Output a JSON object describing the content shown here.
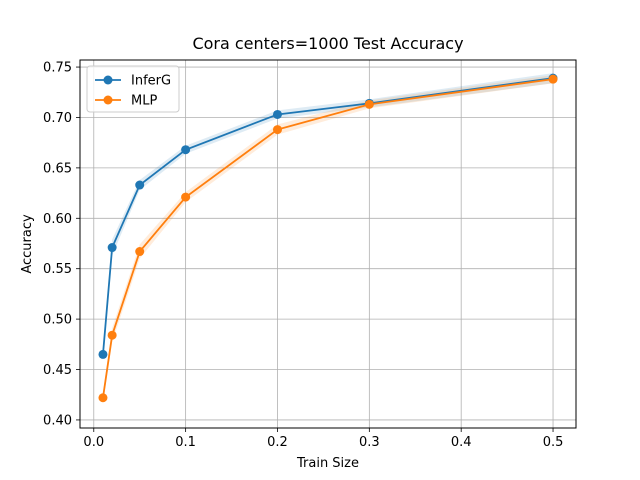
{
  "chart_data": {
    "type": "line",
    "title": "Cora  centers=1000 Test Accuracy",
    "xlabel": "Train Size",
    "ylabel": "Accuracy",
    "xlim": [
      -0.015,
      0.525
    ],
    "ylim": [
      0.392,
      0.757
    ],
    "xticks": [
      0.0,
      0.1,
      0.2,
      0.3,
      0.4,
      0.5
    ],
    "xtick_labels": [
      "0.0",
      "0.1",
      "0.2",
      "0.3",
      "0.4",
      "0.5"
    ],
    "yticks": [
      0.4,
      0.45,
      0.5,
      0.55,
      0.6,
      0.65,
      0.7,
      0.75
    ],
    "ytick_labels": [
      "0.40",
      "0.45",
      "0.50",
      "0.55",
      "0.60",
      "0.65",
      "0.70",
      "0.75"
    ],
    "grid": true,
    "legend_position": "top-left",
    "x": [
      0.01,
      0.02,
      0.05,
      0.1,
      0.2,
      0.3,
      0.5
    ],
    "series": [
      {
        "name": "InferG",
        "color": "#1f77b4",
        "values": [
          0.465,
          0.571,
          0.633,
          0.668,
          0.703,
          0.714,
          0.739
        ],
        "band": [
          0.006,
          0.008,
          0.005,
          0.004,
          0.004,
          0.004,
          0.005
        ]
      },
      {
        "name": "MLP",
        "color": "#ff7f0e",
        "values": [
          0.422,
          0.484,
          0.567,
          0.621,
          0.688,
          0.713,
          0.738
        ],
        "band": [
          0.005,
          0.007,
          0.007,
          0.005,
          0.005,
          0.004,
          0.004
        ]
      }
    ]
  }
}
